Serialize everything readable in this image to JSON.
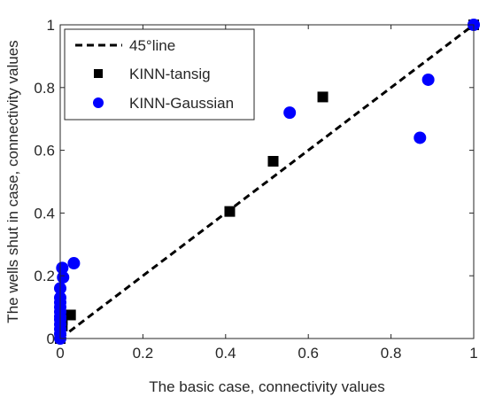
{
  "chart_data": {
    "type": "scatter",
    "title": "",
    "xlabel": "The basic case, connectivity values",
    "ylabel": "The wells shut in case, connectivity values",
    "xlim": [
      0,
      1
    ],
    "ylim": [
      0,
      1
    ],
    "xticks": [
      0,
      0.2,
      0.4,
      0.6,
      0.8,
      1
    ],
    "yticks": [
      0,
      0.2,
      0.4,
      0.6,
      0.8,
      1
    ],
    "xtick_labels": [
      "0",
      "0.2",
      "0.4",
      "0.6",
      "0.8",
      "1"
    ],
    "ytick_labels": [
      "0",
      "0.2",
      "0.4",
      "0.6",
      "0.8",
      "1"
    ],
    "grid": false,
    "legend_position": "top-left",
    "series": [
      {
        "name": "45°line",
        "kind": "line",
        "style": "dashed",
        "color": "#000000",
        "points": [
          [
            0,
            0
          ],
          [
            1,
            1
          ]
        ]
      },
      {
        "name": "KINN-tansig",
        "kind": "marker",
        "marker": "square",
        "color": "#000000",
        "points": [
          [
            0.0,
            0.0
          ],
          [
            0.0,
            0.01
          ],
          [
            0.0,
            0.02
          ],
          [
            0.005,
            0.04
          ],
          [
            0.005,
            0.06
          ],
          [
            0.0,
            0.08
          ],
          [
            0.025,
            0.075
          ],
          [
            0.0,
            0.1
          ],
          [
            0.41,
            0.405
          ],
          [
            0.515,
            0.565
          ],
          [
            0.635,
            0.77
          ],
          [
            1.0,
            1.0
          ]
        ]
      },
      {
        "name": "KINN-Gaussian",
        "kind": "marker",
        "marker": "circle",
        "color": "#0000ff",
        "points": [
          [
            0.0,
            0.0
          ],
          [
            0.0,
            0.015
          ],
          [
            0.0,
            0.03
          ],
          [
            0.0,
            0.045
          ],
          [
            0.0,
            0.06
          ],
          [
            0.0,
            0.07
          ],
          [
            0.0,
            0.085
          ],
          [
            0.0,
            0.1
          ],
          [
            0.0,
            0.115
          ],
          [
            0.0,
            0.13
          ],
          [
            0.0,
            0.16
          ],
          [
            0.007,
            0.195
          ],
          [
            0.005,
            0.225
          ],
          [
            0.033,
            0.24
          ],
          [
            0.555,
            0.72
          ],
          [
            0.87,
            0.64
          ],
          [
            0.89,
            0.825
          ],
          [
            1.0,
            1.0
          ]
        ]
      }
    ]
  }
}
